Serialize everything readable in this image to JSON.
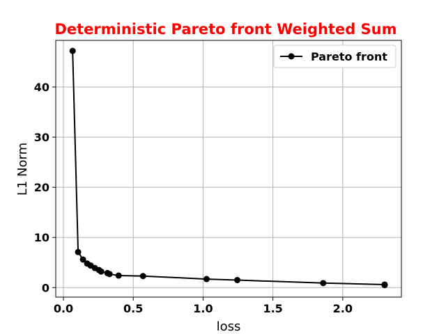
{
  "chart_data": {
    "type": "line",
    "title": "Deterministic Pareto front Weighted Sum",
    "title_color": "#ff0000",
    "xlabel": "loss",
    "ylabel": "L1 Norm",
    "xlim": [
      -0.055,
      2.42
    ],
    "ylim": [
      -1.9,
      49.3
    ],
    "xticks": [
      0.0,
      0.5,
      1.0,
      1.5,
      2.0
    ],
    "xtick_labels": [
      "0.0",
      "0.5",
      "1.0",
      "1.5",
      "2.0"
    ],
    "yticks": [
      0,
      10,
      20,
      30,
      40
    ],
    "ytick_labels": [
      "0",
      "10",
      "20",
      "30",
      "40"
    ],
    "grid": true,
    "legend_position": "top-right",
    "series": [
      {
        "name": "Pareto front",
        "color": "#000000",
        "marker": "circle",
        "x": [
          0.066,
          0.105,
          0.14,
          0.17,
          0.195,
          0.225,
          0.255,
          0.27,
          0.315,
          0.33,
          0.395,
          0.57,
          1.025,
          1.245,
          1.86,
          2.3,
          2.3
        ],
        "y": [
          47.2,
          7.1,
          5.6,
          4.8,
          4.4,
          3.9,
          3.5,
          3.2,
          2.9,
          2.7,
          2.4,
          2.3,
          1.7,
          1.5,
          0.9,
          0.6,
          0.5
        ]
      }
    ]
  }
}
